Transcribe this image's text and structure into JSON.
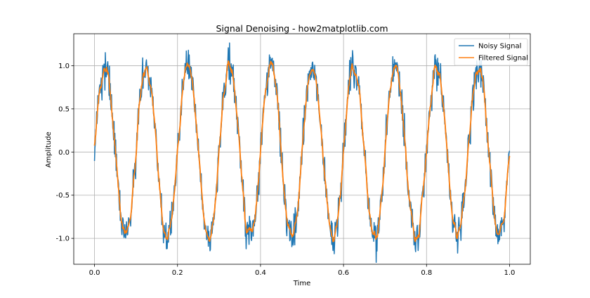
{
  "chart_data": {
    "type": "line",
    "title": "Signal Denoising - how2matplotlib.com",
    "xlabel": "Time",
    "ylabel": "Amplitude",
    "xlim": [
      -0.05,
      1.05
    ],
    "ylim": [
      -1.3,
      1.37
    ],
    "grid": true,
    "legend_position": "top-right",
    "xticks": [
      0.0,
      0.2,
      0.4,
      0.6,
      0.8,
      1.0
    ],
    "xtick_labels": [
      "0.0",
      "0.2",
      "0.4",
      "0.6",
      "0.8",
      "1.0"
    ],
    "yticks": [
      -1.0,
      -0.5,
      0.0,
      0.5,
      1.0
    ],
    "ytick_labels": [
      "-1.0",
      "-0.5",
      "0.0",
      "0.5",
      "1.0"
    ],
    "signal": {
      "x_start": 0.0,
      "x_end": 1.0,
      "cycles": 10,
      "samples": 1000
    },
    "series": [
      {
        "name": "Noisy Signal",
        "color": "#1f77b4",
        "noise_amplitude": 0.1
      },
      {
        "name": "Filtered Signal",
        "color": "#ff7f0e",
        "smoothing_window": 7
      }
    ]
  }
}
